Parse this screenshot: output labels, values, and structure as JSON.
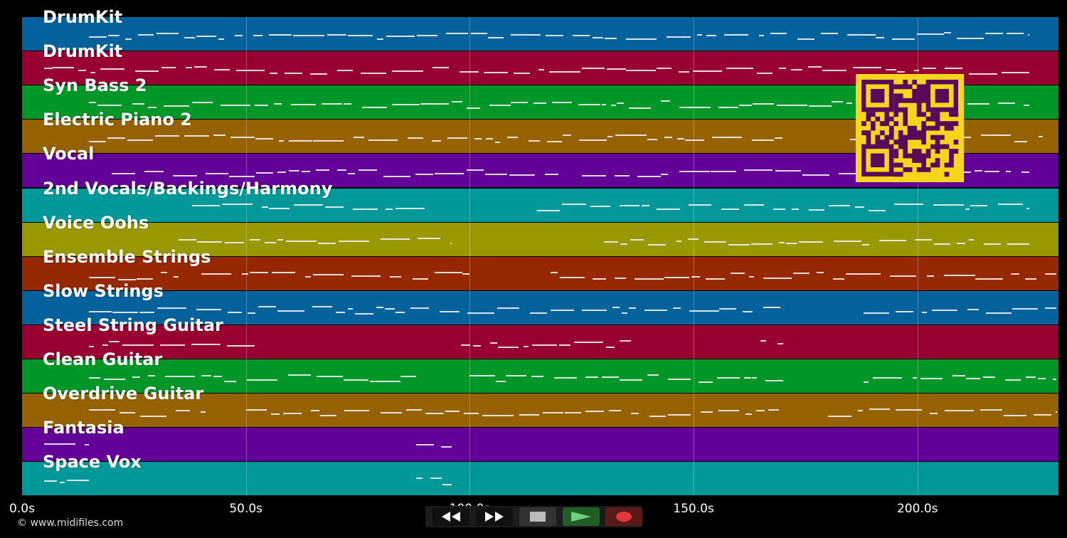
{
  "tracks": [
    {
      "name": "DrumKit",
      "color": "#03619b"
    },
    {
      "name": "DrumKit",
      "color": "#980032"
    },
    {
      "name": "Syn Bass 2",
      "color": "#009628"
    },
    {
      "name": "Electric Piano 2",
      "color": "#966200"
    },
    {
      "name": "Vocal",
      "color": "#620098"
    },
    {
      "name": "2nd Vocals/Backings/Harmony",
      "color": "#009898"
    },
    {
      "name": "Voice Oohs",
      "color": "#989800"
    },
    {
      "name": "Ensemble Strings",
      "color": "#962800"
    },
    {
      "name": "Slow Strings",
      "color": "#03619b"
    },
    {
      "name": "Steel String Guitar",
      "color": "#980032"
    },
    {
      "name": "Clean Guitar",
      "color": "#009628"
    },
    {
      "name": "Overdrive Guitar",
      "color": "#966200"
    },
    {
      "name": "Fantasia",
      "color": "#620098"
    },
    {
      "name": "Space Vox",
      "color": "#009898"
    }
  ],
  "timeline": {
    "max_seconds": 231.5,
    "ticks": [
      {
        "value": 0,
        "label": "0.0s"
      },
      {
        "value": 50,
        "label": "50.0s"
      },
      {
        "value": 100,
        "label": "100.0s"
      },
      {
        "value": 150,
        "label": "150.0s"
      },
      {
        "value": 200,
        "label": "200.0s"
      }
    ]
  },
  "footer": {
    "copyright": "© www.midifiles.com"
  },
  "transport": {
    "buttons": [
      {
        "name": "rewind",
        "icon": "rewind-icon"
      },
      {
        "name": "fast-forward",
        "icon": "fast-forward-icon"
      },
      {
        "name": "stop",
        "icon": "stop-icon"
      },
      {
        "name": "play",
        "icon": "play-icon"
      },
      {
        "name": "record",
        "icon": "record-icon"
      }
    ]
  },
  "qr_code": {
    "color": "#f5d61a",
    "module_color": "#5a0a5a"
  }
}
